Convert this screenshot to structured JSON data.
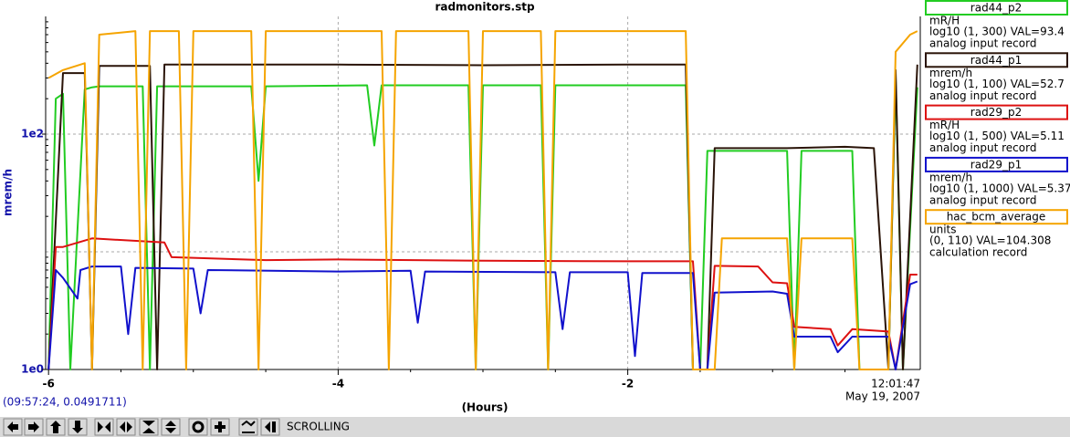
{
  "chart_data": {
    "type": "line",
    "title": "radmonitors.stp",
    "ylabel": "mrem/h",
    "xlabel": "(Hours)",
    "log_y": true,
    "grid": true,
    "ylim": [
      1,
      1000
    ],
    "yticks": [
      {
        "value": 100,
        "label": "1e2"
      },
      {
        "value": 1,
        "label": "1e0"
      }
    ],
    "xlim": [
      -6.02,
      0.02
    ],
    "xticks": [
      -6,
      -4,
      -2
    ],
    "end_time": "12:01:47",
    "end_date": "May 19, 2007",
    "series": [
      {
        "name": "rad44_p2",
        "color": "#22cc22",
        "units": "mR/H",
        "scale": "log10 (1, 300) VAL=93.4",
        "record": "analog input record",
        "x": [
          -6.0,
          -5.95,
          -5.9,
          -5.85,
          -5.75,
          -5.7,
          -5.65,
          -5.35,
          -5.3,
          -5.25,
          -4.6,
          -4.55,
          -4.5,
          -3.8,
          -3.75,
          -3.7,
          -3.1,
          -3.05,
          -3.0,
          -2.6,
          -2.55,
          -2.5,
          -1.6,
          -1.55,
          -1.5,
          -1.45,
          -1.4,
          -0.9,
          -0.85,
          -0.8,
          -0.45,
          -0.4,
          -0.2,
          -0.15,
          -0.1,
          0
        ],
        "values": [
          1,
          200,
          220,
          1,
          240,
          250,
          255,
          255,
          1,
          255,
          255,
          40,
          255,
          260,
          80,
          260,
          260,
          1,
          260,
          260,
          1,
          260,
          260,
          1,
          1,
          72,
          72,
          72,
          1,
          72,
          72,
          1,
          1,
          300,
          1,
          250
        ]
      },
      {
        "name": "rad44_p1",
        "color": "#2a1408",
        "units": "mrem/h",
        "scale": "log10 (1, 100) VAL=52.7",
        "record": "analog input record",
        "x": [
          -6.0,
          -5.9,
          -5.75,
          -5.7,
          -5.65,
          -5.3,
          -5.25,
          -5.2,
          -4.0,
          -3.0,
          -2.0,
          -1.6,
          -1.55,
          -1.45,
          -1.4,
          -0.9,
          -0.5,
          -0.3,
          -0.2,
          -0.15,
          -0.1,
          0
        ],
        "values": [
          1,
          330,
          330,
          1,
          380,
          380,
          1,
          390,
          390,
          385,
          390,
          390,
          1,
          1,
          76,
          76,
          78,
          76,
          1,
          350,
          1,
          390
        ]
      },
      {
        "name": "rad29_p2",
        "color": "#dd1111",
        "units": "mR/H",
        "scale": "log10 (1, 500) VAL=5.11",
        "record": "analog input record",
        "x": [
          -6.0,
          -5.95,
          -5.9,
          -5.7,
          -5.2,
          -5.15,
          -4.5,
          -4.0,
          -3.0,
          -2.0,
          -1.55,
          -1.5,
          -1.45,
          -1.4,
          -1.1,
          -1.0,
          -0.9,
          -0.85,
          -0.6,
          -0.55,
          -0.45,
          -0.2,
          -0.15,
          -0.05,
          0
        ],
        "values": [
          1,
          11,
          11,
          13,
          12,
          9,
          8.5,
          8.6,
          8.4,
          8.3,
          8.3,
          1,
          1,
          7.6,
          7.5,
          5.5,
          5.4,
          2.3,
          2.2,
          1.6,
          2.2,
          2.1,
          1,
          6.4,
          6.4
        ]
      },
      {
        "name": "rad29_p1",
        "color": "#1111cc",
        "units": "mrem/h",
        "scale": "log10 (1, 1000) VAL=5.37",
        "record": "analog input record",
        "x": [
          -6.0,
          -5.95,
          -5.9,
          -5.8,
          -5.78,
          -5.7,
          -5.5,
          -5.45,
          -5.4,
          -5.0,
          -4.95,
          -4.9,
          -4.0,
          -3.5,
          -3.45,
          -3.4,
          -2.5,
          -2.45,
          -2.4,
          -2.0,
          -1.95,
          -1.9,
          -1.55,
          -1.5,
          -1.45,
          -1.4,
          -1.0,
          -0.9,
          -0.85,
          -0.6,
          -0.55,
          -0.45,
          -0.2,
          -0.15,
          -0.05,
          0
        ],
        "values": [
          1,
          7,
          6,
          4,
          7,
          7.5,
          7.5,
          2,
          7.3,
          7.2,
          3,
          7,
          6.8,
          6.9,
          2.5,
          6.8,
          6.7,
          2.2,
          6.7,
          6.7,
          1.3,
          6.6,
          6.6,
          1,
          1,
          4.5,
          4.6,
          4.4,
          1.9,
          1.9,
          1.4,
          1.9,
          1.9,
          1,
          5.3,
          5.6
        ]
      },
      {
        "name": "hac_bcm_average",
        "color": "#f5a400",
        "units": "units",
        "scale": "(0, 110) VAL=104.308",
        "record": "calculation record",
        "x": [
          -6.0,
          -5.9,
          -5.75,
          -5.7,
          -5.65,
          -5.4,
          -5.35,
          -5.3,
          -5.1,
          -5.05,
          -5.0,
          -4.6,
          -4.55,
          -4.5,
          -3.7,
          -3.65,
          -3.6,
          -3.1,
          -3.05,
          -3.0,
          -2.6,
          -2.55,
          -2.5,
          -1.6,
          -1.55,
          -1.4,
          -1.35,
          -0.9,
          -0.85,
          -0.8,
          -0.45,
          -0.4,
          -0.2,
          -0.15,
          -0.05,
          0
        ],
        "values": [
          300,
          350,
          400,
          1,
          700,
          750,
          1,
          750,
          750,
          1,
          750,
          750,
          1,
          750,
          750,
          1,
          750,
          750,
          1,
          750,
          750,
          1,
          750,
          750,
          1,
          1,
          13,
          13,
          1,
          13,
          13,
          1,
          1,
          500,
          700,
          750
        ]
      }
    ]
  },
  "status": {
    "cursor": "(09:57:24, 0.0491711)",
    "mode": "SCROLLING"
  }
}
